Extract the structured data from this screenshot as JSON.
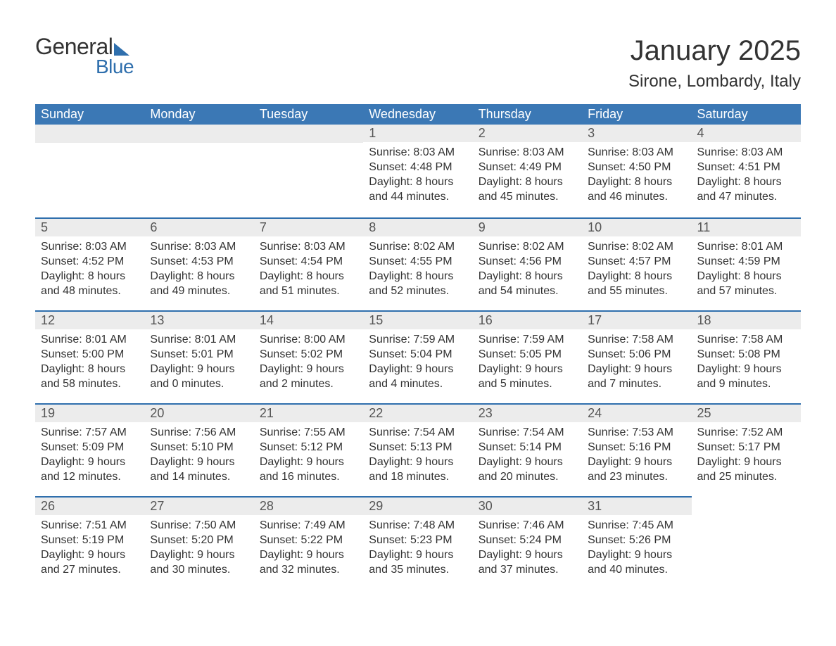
{
  "brand": {
    "general": "General",
    "blue": "Blue"
  },
  "title": {
    "main": "January 2025",
    "sub": "Sirone, Lombardy, Italy"
  },
  "style": {
    "header_bg": "#3b78b5",
    "header_text_color": "#ffffff",
    "daynum_bg": "#ececec",
    "daynum_text_color": "#555555",
    "body_text_color": "#333333",
    "accent_color": "#2f6fad",
    "page_bg": "#ffffff",
    "header_fontsize": 18,
    "title_fontsize": 40,
    "subtitle_fontsize": 24,
    "cell_fontsize": 16
  },
  "day_headers": [
    "Sunday",
    "Monday",
    "Tuesday",
    "Wednesday",
    "Thursday",
    "Friday",
    "Saturday"
  ],
  "weeks": [
    [
      null,
      null,
      null,
      {
        "day": "1",
        "sunrise": "Sunrise: 8:03 AM",
        "sunset": "Sunset: 4:48 PM",
        "daylight1": "Daylight: 8 hours",
        "daylight2": "and 44 minutes."
      },
      {
        "day": "2",
        "sunrise": "Sunrise: 8:03 AM",
        "sunset": "Sunset: 4:49 PM",
        "daylight1": "Daylight: 8 hours",
        "daylight2": "and 45 minutes."
      },
      {
        "day": "3",
        "sunrise": "Sunrise: 8:03 AM",
        "sunset": "Sunset: 4:50 PM",
        "daylight1": "Daylight: 8 hours",
        "daylight2": "and 46 minutes."
      },
      {
        "day": "4",
        "sunrise": "Sunrise: 8:03 AM",
        "sunset": "Sunset: 4:51 PM",
        "daylight1": "Daylight: 8 hours",
        "daylight2": "and 47 minutes."
      }
    ],
    [
      {
        "day": "5",
        "sunrise": "Sunrise: 8:03 AM",
        "sunset": "Sunset: 4:52 PM",
        "daylight1": "Daylight: 8 hours",
        "daylight2": "and 48 minutes."
      },
      {
        "day": "6",
        "sunrise": "Sunrise: 8:03 AM",
        "sunset": "Sunset: 4:53 PM",
        "daylight1": "Daylight: 8 hours",
        "daylight2": "and 49 minutes."
      },
      {
        "day": "7",
        "sunrise": "Sunrise: 8:03 AM",
        "sunset": "Sunset: 4:54 PM",
        "daylight1": "Daylight: 8 hours",
        "daylight2": "and 51 minutes."
      },
      {
        "day": "8",
        "sunrise": "Sunrise: 8:02 AM",
        "sunset": "Sunset: 4:55 PM",
        "daylight1": "Daylight: 8 hours",
        "daylight2": "and 52 minutes."
      },
      {
        "day": "9",
        "sunrise": "Sunrise: 8:02 AM",
        "sunset": "Sunset: 4:56 PM",
        "daylight1": "Daylight: 8 hours",
        "daylight2": "and 54 minutes."
      },
      {
        "day": "10",
        "sunrise": "Sunrise: 8:02 AM",
        "sunset": "Sunset: 4:57 PM",
        "daylight1": "Daylight: 8 hours",
        "daylight2": "and 55 minutes."
      },
      {
        "day": "11",
        "sunrise": "Sunrise: 8:01 AM",
        "sunset": "Sunset: 4:59 PM",
        "daylight1": "Daylight: 8 hours",
        "daylight2": "and 57 minutes."
      }
    ],
    [
      {
        "day": "12",
        "sunrise": "Sunrise: 8:01 AM",
        "sunset": "Sunset: 5:00 PM",
        "daylight1": "Daylight: 8 hours",
        "daylight2": "and 58 minutes."
      },
      {
        "day": "13",
        "sunrise": "Sunrise: 8:01 AM",
        "sunset": "Sunset: 5:01 PM",
        "daylight1": "Daylight: 9 hours",
        "daylight2": "and 0 minutes."
      },
      {
        "day": "14",
        "sunrise": "Sunrise: 8:00 AM",
        "sunset": "Sunset: 5:02 PM",
        "daylight1": "Daylight: 9 hours",
        "daylight2": "and 2 minutes."
      },
      {
        "day": "15",
        "sunrise": "Sunrise: 7:59 AM",
        "sunset": "Sunset: 5:04 PM",
        "daylight1": "Daylight: 9 hours",
        "daylight2": "and 4 minutes."
      },
      {
        "day": "16",
        "sunrise": "Sunrise: 7:59 AM",
        "sunset": "Sunset: 5:05 PM",
        "daylight1": "Daylight: 9 hours",
        "daylight2": "and 5 minutes."
      },
      {
        "day": "17",
        "sunrise": "Sunrise: 7:58 AM",
        "sunset": "Sunset: 5:06 PM",
        "daylight1": "Daylight: 9 hours",
        "daylight2": "and 7 minutes."
      },
      {
        "day": "18",
        "sunrise": "Sunrise: 7:58 AM",
        "sunset": "Sunset: 5:08 PM",
        "daylight1": "Daylight: 9 hours",
        "daylight2": "and 9 minutes."
      }
    ],
    [
      {
        "day": "19",
        "sunrise": "Sunrise: 7:57 AM",
        "sunset": "Sunset: 5:09 PM",
        "daylight1": "Daylight: 9 hours",
        "daylight2": "and 12 minutes."
      },
      {
        "day": "20",
        "sunrise": "Sunrise: 7:56 AM",
        "sunset": "Sunset: 5:10 PM",
        "daylight1": "Daylight: 9 hours",
        "daylight2": "and 14 minutes."
      },
      {
        "day": "21",
        "sunrise": "Sunrise: 7:55 AM",
        "sunset": "Sunset: 5:12 PM",
        "daylight1": "Daylight: 9 hours",
        "daylight2": "and 16 minutes."
      },
      {
        "day": "22",
        "sunrise": "Sunrise: 7:54 AM",
        "sunset": "Sunset: 5:13 PM",
        "daylight1": "Daylight: 9 hours",
        "daylight2": "and 18 minutes."
      },
      {
        "day": "23",
        "sunrise": "Sunrise: 7:54 AM",
        "sunset": "Sunset: 5:14 PM",
        "daylight1": "Daylight: 9 hours",
        "daylight2": "and 20 minutes."
      },
      {
        "day": "24",
        "sunrise": "Sunrise: 7:53 AM",
        "sunset": "Sunset: 5:16 PM",
        "daylight1": "Daylight: 9 hours",
        "daylight2": "and 23 minutes."
      },
      {
        "day": "25",
        "sunrise": "Sunrise: 7:52 AM",
        "sunset": "Sunset: 5:17 PM",
        "daylight1": "Daylight: 9 hours",
        "daylight2": "and 25 minutes."
      }
    ],
    [
      {
        "day": "26",
        "sunrise": "Sunrise: 7:51 AM",
        "sunset": "Sunset: 5:19 PM",
        "daylight1": "Daylight: 9 hours",
        "daylight2": "and 27 minutes."
      },
      {
        "day": "27",
        "sunrise": "Sunrise: 7:50 AM",
        "sunset": "Sunset: 5:20 PM",
        "daylight1": "Daylight: 9 hours",
        "daylight2": "and 30 minutes."
      },
      {
        "day": "28",
        "sunrise": "Sunrise: 7:49 AM",
        "sunset": "Sunset: 5:22 PM",
        "daylight1": "Daylight: 9 hours",
        "daylight2": "and 32 minutes."
      },
      {
        "day": "29",
        "sunrise": "Sunrise: 7:48 AM",
        "sunset": "Sunset: 5:23 PM",
        "daylight1": "Daylight: 9 hours",
        "daylight2": "and 35 minutes."
      },
      {
        "day": "30",
        "sunrise": "Sunrise: 7:46 AM",
        "sunset": "Sunset: 5:24 PM",
        "daylight1": "Daylight: 9 hours",
        "daylight2": "and 37 minutes."
      },
      {
        "day": "31",
        "sunrise": "Sunrise: 7:45 AM",
        "sunset": "Sunset: 5:26 PM",
        "daylight1": "Daylight: 9 hours",
        "daylight2": "and 40 minutes."
      },
      null
    ]
  ]
}
